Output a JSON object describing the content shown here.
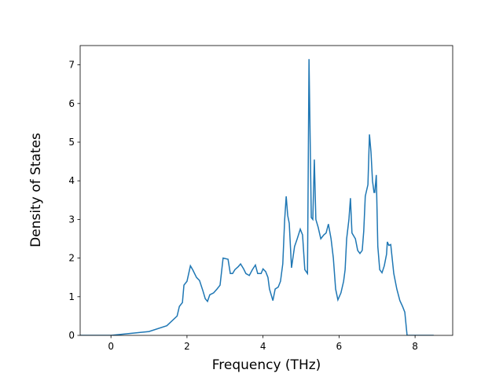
{
  "chart_data": {
    "type": "line",
    "x_label": "Frequency (THz)",
    "y_label": "Density of States",
    "xlim": [
      -0.81,
      8.99
    ],
    "ylim": [
      0,
      7.5
    ],
    "xticks": [
      0,
      2,
      4,
      6,
      8
    ],
    "yticks": [
      0,
      1,
      2,
      3,
      4,
      5,
      6,
      7
    ],
    "series": [
      {
        "color": "#1f77b4",
        "x": [
          -0.81,
          0,
          1.0,
          1.47,
          1.74,
          1.8,
          1.88,
          1.92,
          2.0,
          2.09,
          2.15,
          2.25,
          2.33,
          2.42,
          2.48,
          2.54,
          2.6,
          2.7,
          2.79,
          2.87,
          2.95,
          3.08,
          3.14,
          3.2,
          3.26,
          3.35,
          3.41,
          3.49,
          3.55,
          3.64,
          3.72,
          3.8,
          3.86,
          3.95,
          4.0,
          4.07,
          4.13,
          4.17,
          4.26,
          4.32,
          4.4,
          4.46,
          4.52,
          4.57,
          4.61,
          4.65,
          4.69,
          4.75,
          4.83,
          4.9,
          4.98,
          5.04,
          5.1,
          5.17,
          5.21,
          5.27,
          5.31,
          5.35,
          5.39,
          5.45,
          5.52,
          5.6,
          5.66,
          5.72,
          5.79,
          5.85,
          5.91,
          5.97,
          6.05,
          6.12,
          6.16,
          6.2,
          6.26,
          6.3,
          6.34,
          6.43,
          6.49,
          6.55,
          6.61,
          6.65,
          6.69,
          6.76,
          6.8,
          6.84,
          6.88,
          6.92,
          6.94,
          6.98,
          7.02,
          7.07,
          7.13,
          7.19,
          7.25,
          7.27,
          7.31,
          7.36,
          7.44,
          7.52,
          7.6,
          7.67,
          7.73,
          7.77,
          7.79,
          8.49
        ],
        "values": [
          0,
          0,
          0.1,
          0.25,
          0.5,
          0.75,
          0.85,
          1.3,
          1.4,
          1.8,
          1.7,
          1.5,
          1.42,
          1.15,
          0.95,
          0.88,
          1.05,
          1.1,
          1.2,
          1.3,
          2.0,
          1.97,
          1.6,
          1.6,
          1.7,
          1.78,
          1.85,
          1.72,
          1.6,
          1.55,
          1.7,
          1.82,
          1.6,
          1.6,
          1.72,
          1.65,
          1.5,
          1.2,
          0.9,
          1.2,
          1.25,
          1.4,
          1.85,
          3.0,
          3.6,
          3.1,
          2.9,
          1.75,
          2.3,
          2.5,
          2.75,
          2.6,
          1.7,
          1.6,
          7.15,
          3.05,
          3.0,
          4.55,
          3.0,
          2.8,
          2.5,
          2.6,
          2.65,
          2.88,
          2.5,
          2.0,
          1.2,
          0.92,
          1.1,
          1.4,
          1.7,
          2.5,
          3.0,
          3.55,
          2.65,
          2.5,
          2.2,
          2.12,
          2.2,
          2.7,
          3.6,
          3.9,
          5.2,
          4.75,
          4.0,
          3.7,
          3.7,
          4.15,
          2.3,
          1.7,
          1.62,
          1.8,
          2.1,
          2.42,
          2.33,
          2.35,
          1.6,
          1.2,
          0.9,
          0.75,
          0.6,
          0.2,
          0,
          0
        ]
      }
    ]
  }
}
